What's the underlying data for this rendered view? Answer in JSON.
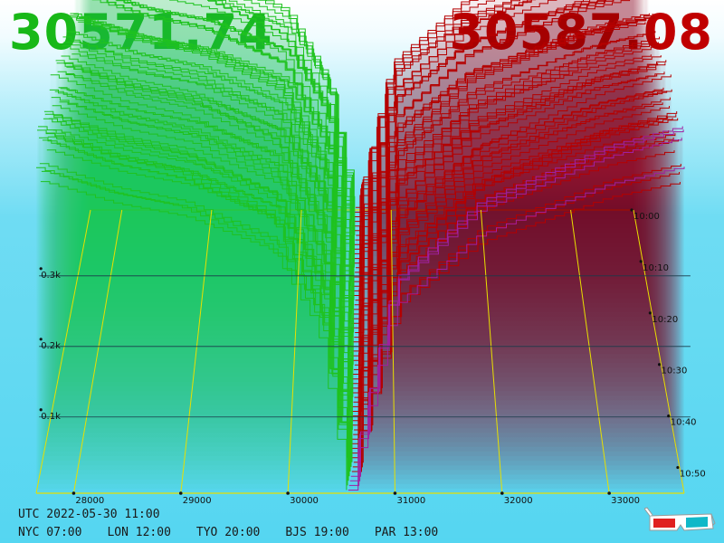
{
  "header": {
    "bid_price": "30571.74",
    "ask_price": "30587.08"
  },
  "footer": {
    "utc": "UTC 2022-05-30 11:00",
    "zones": [
      "NYC 07:00",
      "LON 12:00",
      "TYO 20:00",
      "BJS 19:00",
      "PAR 13:00"
    ]
  },
  "icons": {
    "glasses": "3d-glasses-icon"
  },
  "colors": {
    "bid": "#18b818",
    "ask": "#c00000",
    "bid_line": "#1fc21f",
    "ask_line": "#b50000",
    "grid": "#e8e000"
  },
  "chart_data": {
    "type": "3d-depth-chart",
    "x_axis": {
      "ticks": [
        28000,
        29000,
        30000,
        31000,
        32000,
        33000
      ],
      "tick_labels": [
        "28000",
        "29000",
        "30000",
        "31000",
        "32000",
        "33000"
      ],
      "range": [
        27650,
        33700
      ]
    },
    "time_axis": {
      "tick_labels": [
        "10:00",
        "10:10",
        "10:20",
        "10:30",
        "10:40",
        "10:50"
      ],
      "range_minutes": [
        0,
        55
      ]
    },
    "depth_axis": {
      "tick_labels": [
        "0.1k",
        "0.2k",
        "0.3k"
      ],
      "ticks": [
        100,
        200,
        300
      ]
    },
    "bid_price": 30571.74,
    "ask_price": 30587.08,
    "snapshots": 62,
    "bid_depth_profile": [
      [
        27650,
        455
      ],
      [
        28350,
        420
      ],
      [
        29000,
        400
      ],
      [
        29850,
        345
      ],
      [
        30300,
        230
      ],
      [
        30571,
        5
      ]
    ],
    "ask_depth_profile": [
      [
        30587,
        5
      ],
      [
        30800,
        140
      ],
      [
        31000,
        260
      ],
      [
        31800,
        360
      ],
      [
        33000,
        430
      ],
      [
        33700,
        455
      ]
    ]
  }
}
